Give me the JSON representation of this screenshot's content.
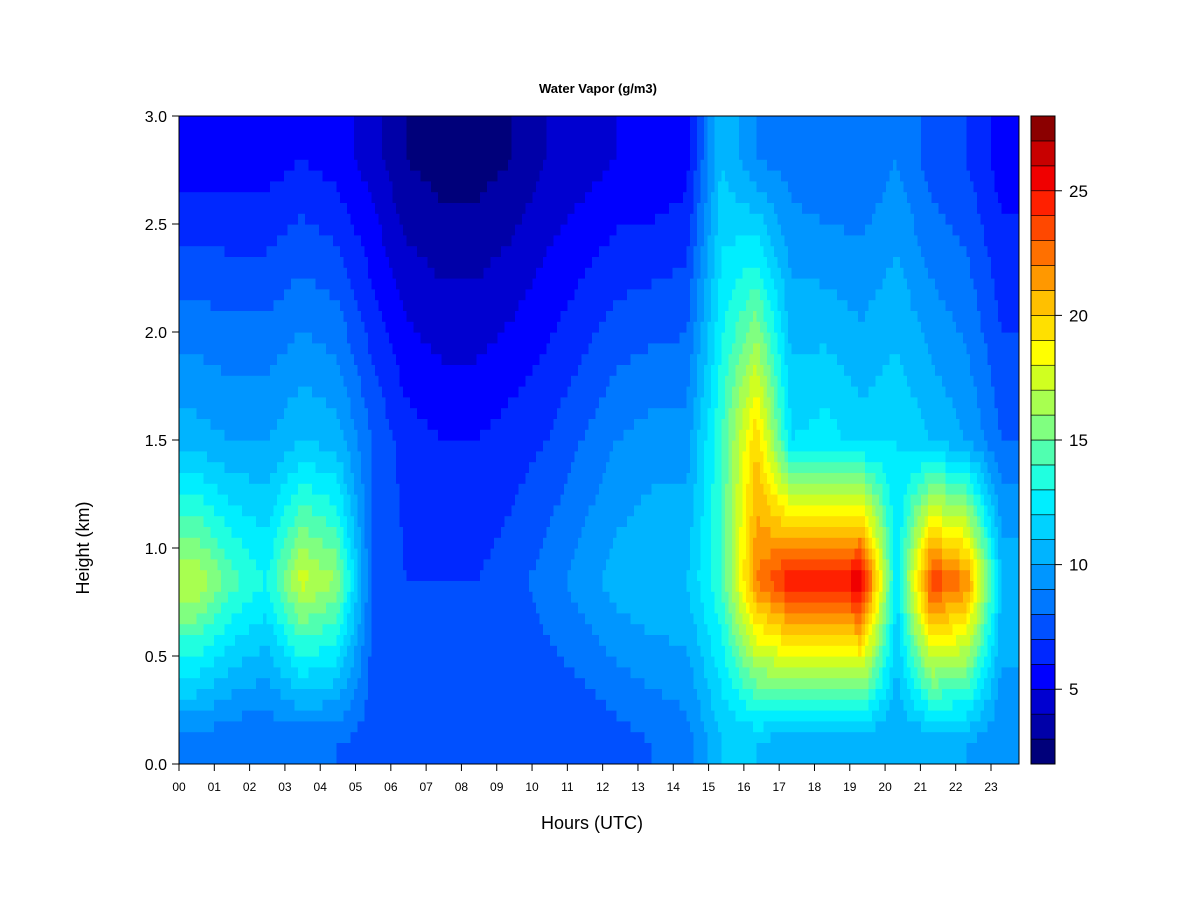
{
  "chart_data": {
    "type": "heatmap",
    "title": "Water Vapor (g/m3)",
    "xlabel": "Hours (UTC)",
    "ylabel": "Height (km)",
    "xlim": [
      0,
      24
    ],
    "ylim": [
      0.0,
      3.0
    ],
    "x_ticks": [
      "00",
      "01",
      "02",
      "03",
      "04",
      "05",
      "06",
      "07",
      "08",
      "09",
      "10",
      "11",
      "12",
      "13",
      "14",
      "15",
      "16",
      "17",
      "18",
      "19",
      "20",
      "21",
      "22",
      "23"
    ],
    "y_ticks": [
      "0.0",
      "0.5",
      "1.0",
      "1.5",
      "2.0",
      "2.5",
      "3.0"
    ],
    "colorbar": {
      "min": 2,
      "max": 28,
      "levels": 26,
      "ticks": [
        "5",
        "10",
        "15",
        "20",
        "25"
      ],
      "colors": [
        "#00007a",
        "#0000a8",
        "#0000d0",
        "#0000ff",
        "#0028ff",
        "#0050ff",
        "#0078ff",
        "#0096ff",
        "#00b4ff",
        "#00d2ff",
        "#00eeff",
        "#20ffe0",
        "#50ffb0",
        "#80ff80",
        "#a8ff50",
        "#d0ff20",
        "#ffff00",
        "#ffe000",
        "#ffc000",
        "#ff9800",
        "#ff7000",
        "#ff4800",
        "#ff2000",
        "#f00000",
        "#c80000",
        "#8b0000"
      ]
    },
    "grid": false,
    "series": [
      {
        "name": "",
        "x": [
          0,
          1,
          2,
          3,
          4,
          5,
          6,
          7,
          8,
          9,
          10,
          11,
          12,
          13,
          14,
          15,
          16,
          17,
          18,
          19,
          20,
          21,
          22,
          23
        ],
        "y_level_km": 0.1,
        "values": [
          8.5,
          8.0,
          8.0,
          8.0,
          8.0,
          7.5,
          7.0,
          7.0,
          7.0,
          7.0,
          7.0,
          7.0,
          7.5,
          8.0,
          8.5,
          11.0,
          11.0,
          10.0,
          10.0,
          10.0,
          10.0,
          10.0,
          10.0,
          9.0
        ]
      },
      {
        "name": "",
        "x": [
          0,
          1,
          2,
          3,
          4,
          5,
          6,
          7,
          8,
          9,
          10,
          11,
          12,
          13,
          14,
          15,
          16,
          17,
          18,
          19,
          20,
          21,
          22,
          23
        ],
        "y_level_km": 0.85,
        "values": [
          17.0,
          14.5,
          13.0,
          17.5,
          16.0,
          8.0,
          7.0,
          7.0,
          7.0,
          7.5,
          8.5,
          9.5,
          10.5,
          11.0,
          11.0,
          14.0,
          22.0,
          25.0,
          24.5,
          26.0,
          12.0,
          24.0,
          22.0,
          11.0
        ]
      },
      {
        "name": "",
        "x": [
          0,
          1,
          2,
          3,
          4,
          5,
          6,
          7,
          8,
          9,
          10,
          11,
          12,
          13,
          14,
          15,
          16,
          17,
          18,
          19,
          20,
          21,
          22,
          23
        ],
        "y_level_km": 1.5,
        "values": [
          10.5,
          10.0,
          10.0,
          11.0,
          10.5,
          8.0,
          6.5,
          6.0,
          6.0,
          6.5,
          7.0,
          8.0,
          9.0,
          9.5,
          9.5,
          14.0,
          20.0,
          12.0,
          12.5,
          11.5,
          12.0,
          11.0,
          10.0,
          8.0
        ]
      },
      {
        "name": "",
        "x": [
          0,
          1,
          2,
          3,
          4,
          5,
          6,
          7,
          8,
          9,
          10,
          11,
          12,
          13,
          14,
          15,
          16,
          17,
          18,
          19,
          20,
          21,
          22,
          23
        ],
        "y_level_km": 2.8,
        "values": [
          5.5,
          5.5,
          5.5,
          6.0,
          5.5,
          4.5,
          3.0,
          2.5,
          2.5,
          3.0,
          4.0,
          4.5,
          5.0,
          5.0,
          5.5,
          11.0,
          9.0,
          8.5,
          8.0,
          8.0,
          9.0,
          7.5,
          7.0,
          5.5
        ]
      }
    ]
  }
}
